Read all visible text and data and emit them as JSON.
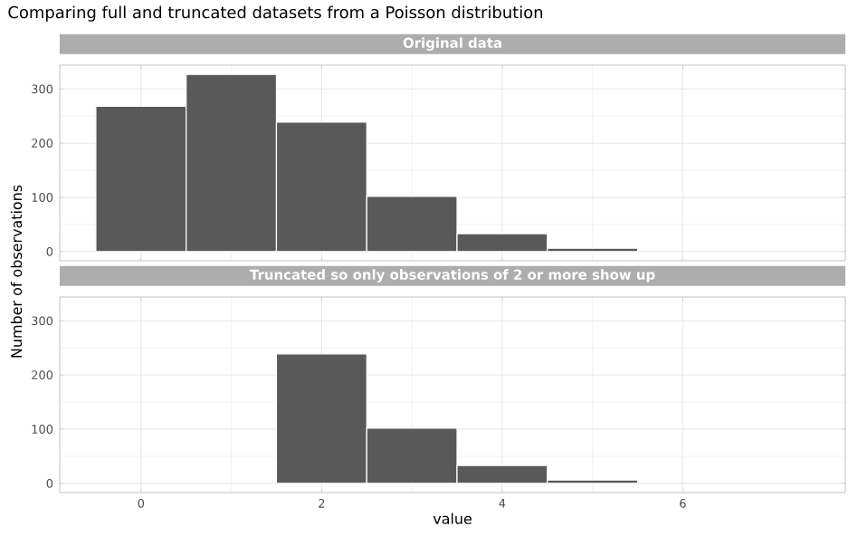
{
  "chart_data": [
    {
      "type": "histogram",
      "title": "Comparing full and truncated datasets from a Poisson distribution",
      "subtitle": "Original data",
      "ylabel": "Number of observations",
      "bins": [
        -0.5,
        0.5,
        1.5,
        2.5,
        3.5,
        4.5,
        5.5
      ],
      "values": [
        268,
        327,
        239,
        102,
        33,
        6
      ],
      "color": "#595959",
      "xlim": [
        -0.9,
        7.8
      ],
      "ylim": [
        -17,
        344
      ],
      "xticks": [
        0,
        2,
        4,
        6
      ],
      "yticks": [
        0,
        100,
        200,
        300
      ],
      "grid": true,
      "tick_labels": "y"
    },
    {
      "type": "histogram",
      "subtitle": "Truncated so only observations of 2 or more show up",
      "xlabel": "value",
      "bins": [
        1.5,
        2.5,
        3.5,
        4.5,
        5.5
      ],
      "values": [
        239,
        102,
        33,
        6
      ],
      "color": "#595959",
      "xlim": [
        -0.9,
        7.8
      ],
      "ylim": [
        -17,
        344
      ],
      "xticks": [
        0,
        2,
        4,
        6
      ],
      "yticks": [
        0,
        100,
        200,
        300
      ],
      "grid": true
    }
  ]
}
